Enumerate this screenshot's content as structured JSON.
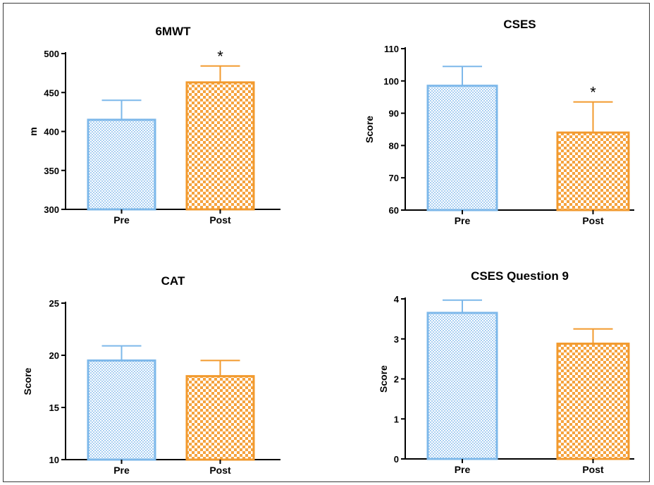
{
  "colors": {
    "pre_stroke": "#7db8ea",
    "pre_fill_a": "#a9cff2",
    "pre_fill_b": "#ffffff",
    "post_stroke": "#f29a2e",
    "post_fill_a": "#f5a33f",
    "post_fill_b": "#ffffff",
    "axis": "#000000"
  },
  "chart_data": [
    {
      "type": "bar",
      "title": "6MWT",
      "ylabel": "m",
      "categories": [
        "Pre",
        "Post"
      ],
      "values": [
        415,
        463
      ],
      "error_upper": [
        440,
        484
      ],
      "ylim": [
        300,
        500
      ],
      "yticks": [
        300,
        350,
        400,
        450,
        500
      ],
      "significance": [
        "",
        "*"
      ]
    },
    {
      "type": "bar",
      "title": "CSES",
      "ylabel": "Score",
      "categories": [
        "Pre",
        "Post"
      ],
      "values": [
        98.5,
        84
      ],
      "error_upper": [
        104.5,
        93.5
      ],
      "ylim": [
        60,
        110
      ],
      "yticks": [
        60,
        70,
        80,
        90,
        100,
        110
      ],
      "significance": [
        "",
        "*"
      ]
    },
    {
      "type": "bar",
      "title": "CAT",
      "ylabel": "Score",
      "categories": [
        "Pre",
        "Post"
      ],
      "values": [
        19.5,
        18
      ],
      "error_upper": [
        20.9,
        19.5
      ],
      "ylim": [
        10,
        25
      ],
      "yticks": [
        10,
        15,
        20,
        25
      ],
      "significance": [
        "",
        ""
      ]
    },
    {
      "type": "bar",
      "title": "CSES Question 9",
      "ylabel": "Score",
      "categories": [
        "Pre",
        "Post"
      ],
      "values": [
        3.65,
        2.88
      ],
      "error_upper": [
        3.97,
        3.25
      ],
      "ylim": [
        0,
        4
      ],
      "yticks": [
        0,
        1,
        2,
        3,
        4
      ],
      "significance": [
        "",
        ""
      ]
    }
  ]
}
